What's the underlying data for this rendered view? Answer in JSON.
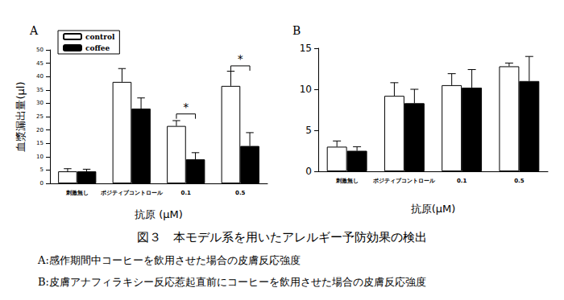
{
  "chart_data": [
    {
      "type": "bar",
      "title": "A",
      "x_label": "抗原 (μM)",
      "y_label": "血漿漏出量(μl)",
      "categories": [
        "刺激無し",
        "ポジティブコントロール",
        "0.1",
        "0.5"
      ],
      "series": [
        {
          "name": "control",
          "color": "#ffffff",
          "values": [
            4.5,
            38,
            21.5,
            36.5
          ],
          "errors": [
            1,
            5,
            2,
            5.5
          ]
        },
        {
          "name": "coffee",
          "color": "#000000",
          "values": [
            4.5,
            28,
            9,
            14
          ],
          "errors": [
            0.8,
            4,
            2.5,
            5
          ]
        }
      ],
      "annotations": [
        {
          "category": "0.1",
          "text": "*",
          "y": 26
        },
        {
          "category": "0.5",
          "text": "*",
          "y": 44
        }
      ],
      "ylim": [
        0,
        50
      ],
      "yticks": [
        0,
        5,
        10,
        15,
        20,
        25,
        30,
        35,
        40,
        45,
        50
      ],
      "grid": false,
      "legend": "upper left"
    },
    {
      "type": "bar",
      "title": "B",
      "x_label": "抗原(μM)",
      "categories": [
        "刺激無し",
        "ポジティブコントロール",
        "0.1",
        "0.5"
      ],
      "series": [
        {
          "name": "control",
          "color": "#ffffff",
          "values": [
            3,
            9.2,
            10.5,
            12.8
          ],
          "errors": [
            0.7,
            1.6,
            1.4,
            0.4
          ]
        },
        {
          "name": "coffee",
          "color": "#000000",
          "values": [
            2.5,
            8.3,
            10.2,
            11
          ],
          "errors": [
            0.5,
            1.7,
            2.2,
            3
          ]
        }
      ],
      "ylim": [
        0,
        15
      ],
      "yticks": [
        0,
        5,
        10,
        15
      ],
      "grid": false,
      "legend": "none"
    }
  ],
  "figure_caption": {
    "title": "図３　本モデル系を用いたアレルギー予防効果の検出",
    "notes": [
      "A:感作期間中コーヒーを飲用させた場合の皮膚反応強度",
      "B:皮膚アナフィラキシー反応惹起直前にコーヒーを飲用させた場合の皮膚反応強度"
    ]
  }
}
